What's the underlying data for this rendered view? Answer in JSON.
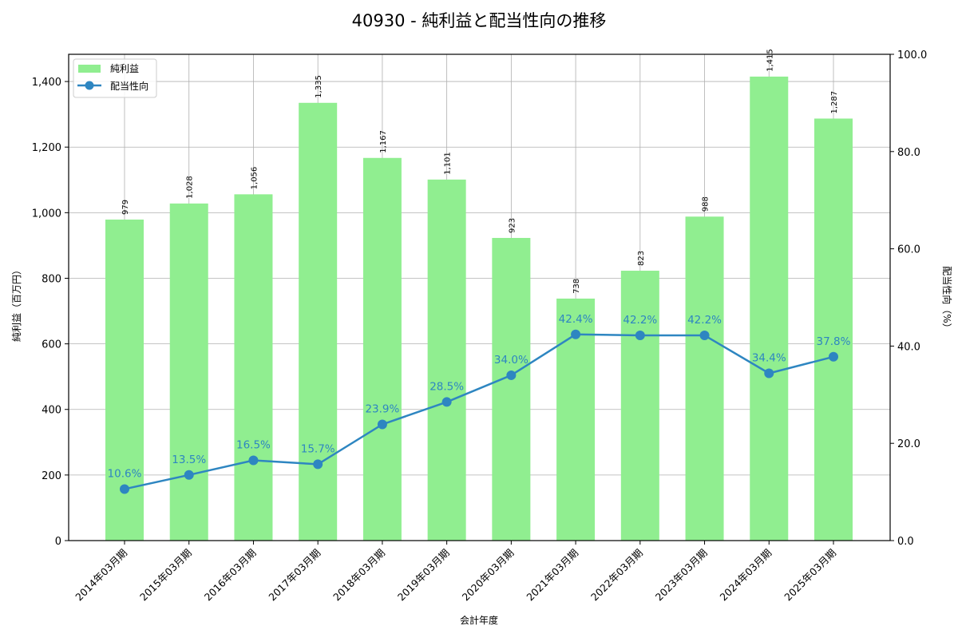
{
  "chart_data": {
    "type": "bar+line",
    "title": "40930 - 純利益と配当性向の推移",
    "xlabel": "会計年度",
    "ylabel_left": "純利益（百万円）",
    "ylabel_right": "配当性向（%）",
    "categories": [
      "2014年03月期",
      "2015年03月期",
      "2016年03月期",
      "2017年03月期",
      "2018年03月期",
      "2019年03月期",
      "2020年03月期",
      "2021年03月期",
      "2022年03月期",
      "2023年03月期",
      "2024年03月期",
      "2025年03月期"
    ],
    "series": [
      {
        "name": "純利益",
        "type": "bar",
        "axis": "left",
        "color": "#90ee90",
        "values": [
          979,
          1028,
          1056,
          1335,
          1167,
          1101,
          923,
          738,
          823,
          988,
          1415,
          1287
        ],
        "labels": [
          "979",
          "1,028",
          "1,056",
          "1,335",
          "1,167",
          "1,101",
          "923",
          "738",
          "823",
          "988",
          "1,415",
          "1,287"
        ]
      },
      {
        "name": "配当性向",
        "type": "line",
        "axis": "right",
        "color": "#2e86c1",
        "values": [
          10.6,
          13.5,
          16.5,
          15.7,
          23.9,
          28.5,
          34.0,
          42.4,
          42.2,
          42.2,
          34.4,
          37.8
        ],
        "labels": [
          "10.6%",
          "13.5%",
          "16.5%",
          "15.7%",
          "23.9%",
          "28.5%",
          "34.0%",
          "42.4%",
          "42.2%",
          "42.2%",
          "34.4%",
          "37.8%"
        ]
      }
    ],
    "ylim_left": [
      0,
      1483
    ],
    "ylim_right": [
      0,
      100
    ],
    "yticks_left": [
      0,
      200,
      400,
      600,
      800,
      1000,
      1200,
      1400
    ],
    "yticks_left_labels": [
      "0",
      "200",
      "400",
      "600",
      "800",
      "1,000",
      "1,200",
      "1,400"
    ],
    "yticks_right": [
      0,
      20,
      40,
      60,
      80,
      100
    ],
    "yticks_right_labels": [
      "0.0",
      "20.0",
      "40.0",
      "60.0",
      "80.0",
      "100.0"
    ],
    "grid": true,
    "legend": {
      "position": "upper left",
      "entries": [
        "純利益",
        "配当性向"
      ]
    }
  }
}
